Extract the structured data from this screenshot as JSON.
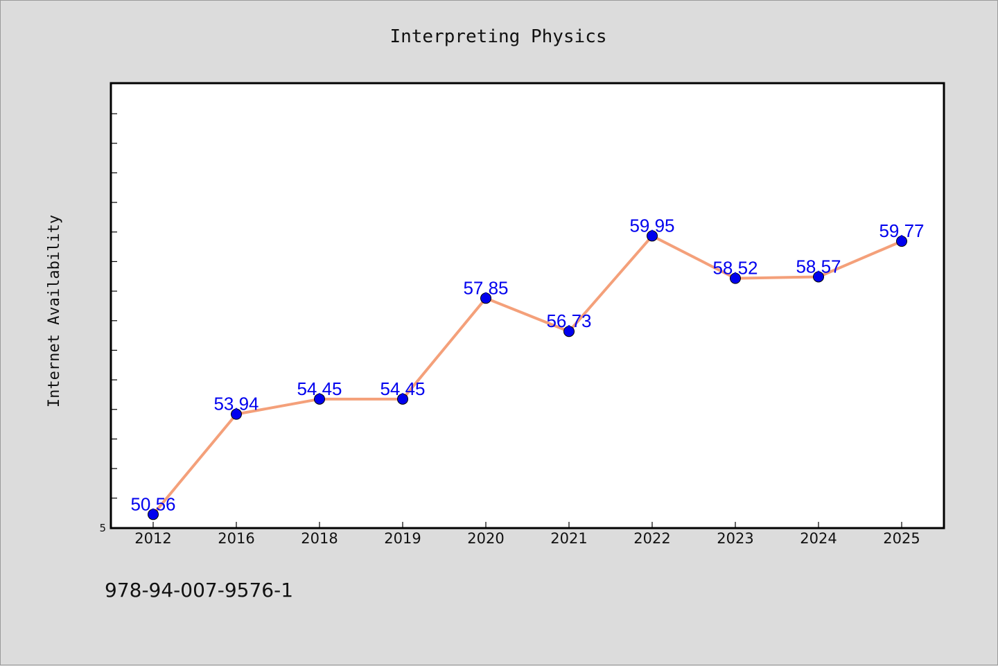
{
  "chart_data": {
    "type": "line",
    "title": "Interpreting Physics",
    "xlabel": "",
    "ylabel": "Internet Availability",
    "categories": [
      "2012",
      "2016",
      "2018",
      "2019",
      "2020",
      "2021",
      "2022",
      "2023",
      "2024",
      "2025"
    ],
    "series": [
      {
        "values": [
          50.56,
          53.94,
          54.45,
          54.45,
          57.85,
          56.73,
          59.95,
          58.52,
          58.57,
          59.77
        ],
        "labels": [
          "50.56",
          "53.94",
          "54.45",
          "54.45",
          "57.85",
          "56.73",
          "59.95",
          "58.52",
          "58.57",
          "59.77"
        ]
      }
    ],
    "ylim": [
      50.1,
      65.1
    ],
    "yticks_labeled": [
      "5"
    ],
    "grid": false,
    "legend": "none",
    "line_color": "#f4a07a",
    "marker_color": "#0000ee",
    "label_color": "#0000ee"
  },
  "footer": {
    "note": "978-94-007-9576-1"
  }
}
